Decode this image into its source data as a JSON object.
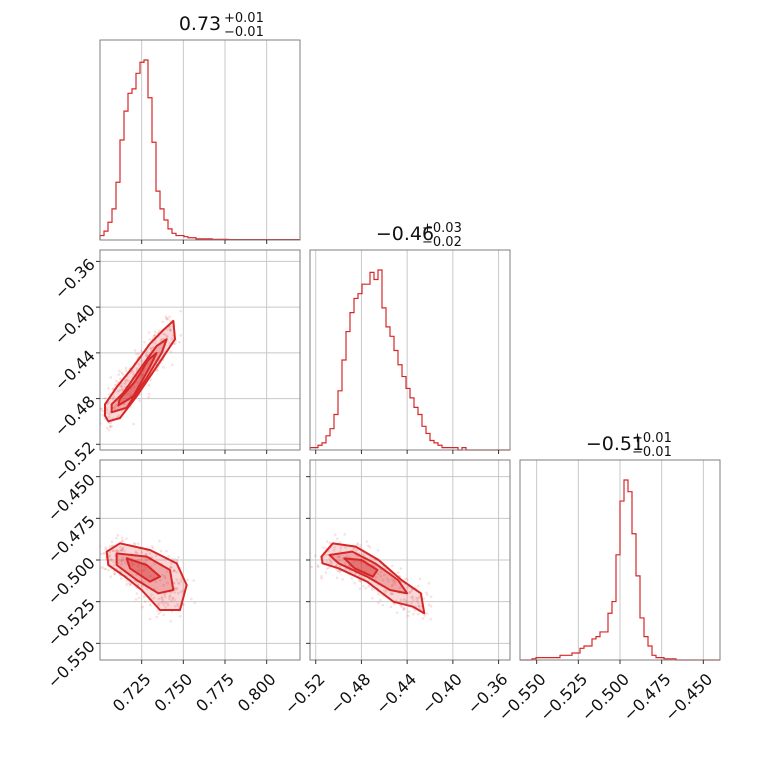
{
  "chart_data": {
    "type": "corner",
    "color": "#d62728",
    "parameters": [
      {
        "median": "0.73",
        "plus": "+0.01",
        "minus": "−0.01",
        "range": [
          0.7,
          0.82
        ],
        "ticks": [
          "0.725",
          "0.750",
          "0.775",
          "0.800"
        ],
        "tick_values": [
          0.725,
          0.75,
          0.775,
          0.8
        ]
      },
      {
        "median": "−0.46",
        "plus": "+0.03",
        "minus": "−0.02",
        "range": [
          -0.525,
          -0.35
        ],
        "ticks": [
          "−0.52",
          "−0.48",
          "−0.44",
          "−0.40",
          "−0.36"
        ],
        "tick_values": [
          -0.52,
          -0.48,
          -0.44,
          -0.4,
          -0.36
        ]
      },
      {
        "median": "−0.51",
        "plus": "+0.01",
        "minus": "−0.01",
        "range": [
          -0.56,
          -0.44
        ],
        "ticks": [
          "−0.550",
          "−0.525",
          "−0.500",
          "−0.475",
          "−0.450"
        ],
        "tick_values": [
          -0.55,
          -0.525,
          -0.5,
          -0.475,
          -0.45
        ]
      }
    ],
    "histograms": [
      {
        "param": 0,
        "bin_start": 0.7,
        "bin_width": 0.0024,
        "counts": [
          2,
          4,
          8,
          14,
          26,
          45,
          58,
          66,
          68,
          75,
          80,
          81,
          64,
          44,
          22,
          14,
          9,
          5,
          3,
          2,
          2,
          1.5,
          1,
          1,
          0.5,
          0.5,
          0.5,
          0.5,
          0.3,
          0.3,
          0.3,
          0.3,
          0.2,
          0.2,
          0.2,
          0.2,
          0.2,
          0.2,
          0.2,
          0.2,
          0.2,
          0.2,
          0.2,
          0.2,
          0.2,
          0.2,
          0.2,
          0.2,
          0.2,
          0.2
        ]
      },
      {
        "param": 1,
        "bin_start": -0.525,
        "bin_width": 0.0035,
        "counts": [
          1,
          1,
          2,
          3,
          6,
          9,
          15,
          25,
          38,
          50,
          58,
          64,
          66,
          70,
          70,
          75,
          72,
          76,
          60,
          52,
          48,
          42,
          36,
          31,
          26,
          22,
          18,
          15,
          10,
          7,
          4,
          3,
          2,
          1,
          1,
          1,
          1,
          0,
          1,
          0,
          0,
          0,
          0,
          0,
          0,
          0,
          0,
          0,
          0,
          0
        ]
      },
      {
        "param": 2,
        "bin_start": -0.56,
        "bin_width": 0.0024,
        "counts": [
          0,
          0,
          0,
          0.5,
          1,
          1,
          1,
          1,
          1,
          1,
          2,
          2,
          2,
          3,
          3,
          5,
          6,
          6,
          9,
          10,
          12,
          12,
          20,
          25,
          45,
          68,
          77,
          72,
          54,
          36,
          18,
          10,
          6,
          2,
          1,
          1,
          0.5,
          0.5,
          0.5,
          0,
          0,
          0,
          0,
          0,
          0,
          0,
          0,
          0,
          0,
          0
        ]
      }
    ],
    "pairs": [
      {
        "x_param": 0,
        "y_param": 1,
        "contours": [
          [
            [
              0.703,
              -0.495
            ],
            [
              0.705,
              -0.5
            ],
            [
              0.712,
              -0.497
            ],
            [
              0.722,
              -0.478
            ],
            [
              0.735,
              -0.45
            ],
            [
              0.745,
              -0.428
            ],
            [
              0.744,
              -0.412
            ],
            [
              0.738,
              -0.42
            ],
            [
              0.73,
              -0.432
            ],
            [
              0.72,
              -0.452
            ],
            [
              0.71,
              -0.47
            ],
            [
              0.703,
              -0.485
            ]
          ],
          [
            [
              0.707,
              -0.492
            ],
            [
              0.716,
              -0.488
            ],
            [
              0.728,
              -0.462
            ],
            [
              0.737,
              -0.44
            ],
            [
              0.74,
              -0.428
            ],
            [
              0.734,
              -0.434
            ],
            [
              0.725,
              -0.452
            ],
            [
              0.714,
              -0.475
            ],
            [
              0.707,
              -0.485
            ]
          ],
          [
            [
              0.711,
              -0.486
            ],
            [
              0.72,
              -0.478
            ],
            [
              0.73,
              -0.452
            ],
            [
              0.734,
              -0.44
            ],
            [
              0.729,
              -0.446
            ],
            [
              0.721,
              -0.465
            ],
            [
              0.712,
              -0.48
            ]
          ]
        ],
        "scatter_region": {
          "x": [
            0.7,
            0.76
          ],
          "y": [
            -0.505,
            -0.385
          ]
        }
      },
      {
        "x_param": 0,
        "y_param": 2,
        "contours": [
          [
            [
              0.704,
              -0.495
            ],
            [
              0.712,
              -0.49
            ],
            [
              0.73,
              -0.494
            ],
            [
              0.746,
              -0.502
            ],
            [
              0.752,
              -0.515
            ],
            [
              0.748,
              -0.53
            ],
            [
              0.736,
              -0.53
            ],
            [
              0.725,
              -0.518
            ],
            [
              0.715,
              -0.51
            ],
            [
              0.705,
              -0.503
            ]
          ],
          [
            [
              0.71,
              -0.496
            ],
            [
              0.728,
              -0.498
            ],
            [
              0.742,
              -0.506
            ],
            [
              0.744,
              -0.518
            ],
            [
              0.735,
              -0.52
            ],
            [
              0.722,
              -0.512
            ],
            [
              0.71,
              -0.503
            ]
          ],
          [
            [
              0.716,
              -0.499
            ],
            [
              0.728,
              -0.503
            ],
            [
              0.736,
              -0.51
            ],
            [
              0.73,
              -0.513
            ],
            [
              0.718,
              -0.505
            ]
          ]
        ],
        "scatter_region": {
          "x": [
            0.7,
            0.765
          ],
          "y": [
            -0.545,
            -0.48
          ]
        }
      },
      {
        "x_param": 1,
        "y_param": 2,
        "contours": [
          [
            [
              -0.515,
              -0.498
            ],
            [
              -0.505,
              -0.49
            ],
            [
              -0.485,
              -0.492
            ],
            [
              -0.465,
              -0.5
            ],
            [
              -0.445,
              -0.512
            ],
            [
              -0.428,
              -0.52
            ],
            [
              -0.425,
              -0.532
            ],
            [
              -0.435,
              -0.528
            ],
            [
              -0.452,
              -0.525
            ],
            [
              -0.475,
              -0.513
            ],
            [
              -0.5,
              -0.505
            ],
            [
              -0.514,
              -0.502
            ]
          ],
          [
            [
              -0.508,
              -0.497
            ],
            [
              -0.488,
              -0.495
            ],
            [
              -0.468,
              -0.502
            ],
            [
              -0.448,
              -0.512
            ],
            [
              -0.44,
              -0.52
            ],
            [
              -0.455,
              -0.518
            ],
            [
              -0.475,
              -0.51
            ],
            [
              -0.5,
              -0.502
            ]
          ],
          [
            [
              -0.495,
              -0.499
            ],
            [
              -0.48,
              -0.5
            ],
            [
              -0.466,
              -0.506
            ],
            [
              -0.47,
              -0.51
            ],
            [
              -0.486,
              -0.505
            ]
          ]
        ],
        "scatter_region": {
          "x": [
            -0.525,
            -0.36
          ],
          "y": [
            -0.545,
            -0.48
          ]
        }
      }
    ]
  }
}
